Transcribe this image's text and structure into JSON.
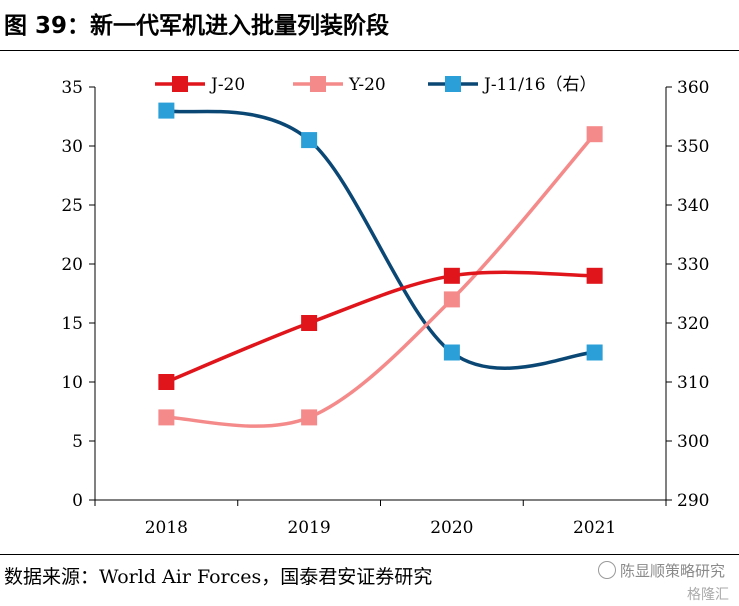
{
  "figure": {
    "title": "图 39：新一代军机进入批量列装阶段",
    "source": "数据来源：World Air Forces，国泰君安证券研究",
    "watermark": "陈显顺策略研究",
    "watermark2": "格隆汇"
  },
  "chart_data": {
    "type": "line",
    "categories": [
      "2018",
      "2019",
      "2020",
      "2021"
    ],
    "series": [
      {
        "name": "J-20",
        "axis": "left",
        "color": "#e0141b",
        "values": [
          10,
          15,
          19,
          19
        ]
      },
      {
        "name": "Y-20",
        "axis": "left",
        "color": "#f58a8a",
        "values": [
          7,
          7,
          17,
          31
        ]
      },
      {
        "name": "J-11/16（右）",
        "axis": "right",
        "color": "#0b4774",
        "marker_color": "#2a9fd8",
        "values": [
          356,
          351,
          315,
          315
        ]
      }
    ],
    "y_left": {
      "min": 0,
      "max": 35,
      "ticks": [
        "0",
        "5",
        "10",
        "15",
        "20",
        "25",
        "30",
        "35"
      ]
    },
    "y_right": {
      "min": 290,
      "max": 360,
      "ticks": [
        "290",
        "300",
        "310",
        "320",
        "330",
        "340",
        "350",
        "360"
      ]
    },
    "legend_position": "top",
    "grid": false,
    "smooth": true
  }
}
